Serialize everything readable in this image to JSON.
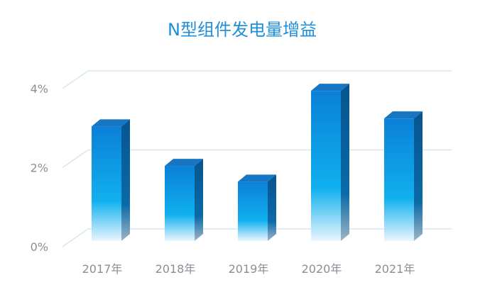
{
  "chart_data": {
    "type": "bar",
    "style": "3d-column",
    "title": "N型组件发电量增益",
    "xlabel": "",
    "ylabel": "",
    "categories": [
      "2017年",
      "2018年",
      "2019年",
      "2020年",
      "2021年"
    ],
    "series": [
      {
        "values": [
          2.9,
          1.9,
          1.5,
          3.8,
          3.1
        ]
      }
    ],
    "ylim": [
      0,
      4
    ],
    "y_ticks": [
      "0%",
      "2%",
      "4%"
    ],
    "y_tick_values": [
      0,
      2,
      4
    ],
    "grid": true,
    "legend": "none",
    "colors": {
      "bar_top": "#0b80d8",
      "bar_mid": "#10b0ee",
      "bar_bottom": "#eaf6fe",
      "bar_side": "#0a5f9e",
      "bar_cap": "#1676c2",
      "grid": "#d7e7f4",
      "title": "#1f8fd9",
      "axis_text": "#8a8f96"
    }
  }
}
